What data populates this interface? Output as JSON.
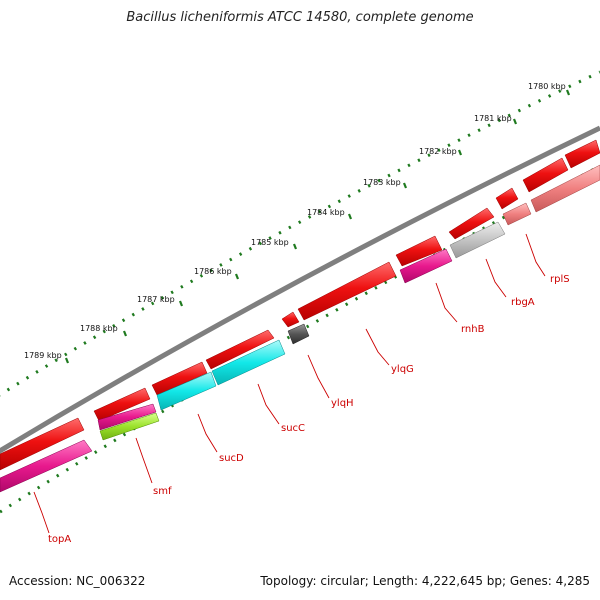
{
  "header": {
    "title": "Bacillus licheniformis ATCC 14580, complete genome"
  },
  "footer": {
    "accession": "Accession: NC_006322",
    "summary": "Topology: circular; Length: 4,222,645 bp; Genes: 4,285"
  },
  "kbp_labels": [
    "1780 kbp",
    "1781 kbp",
    "1782 kbp",
    "1783 kbp",
    "1784 kbp",
    "1785 kbp",
    "1786 kbp",
    "1787 kbp",
    "1788 kbp",
    "1789 kbp"
  ],
  "genes": [
    "rplS",
    "rbgA",
    "rnhB",
    "ylqG",
    "ylqH",
    "sucC",
    "sucD",
    "smf",
    "topA"
  ],
  "colors": {
    "backbone": "#7f7f7f",
    "cds": "#ee1111",
    "magenta": "#e8198d",
    "cyan": "#12e8e8",
    "lime": "#9be22b",
    "gray_feature": "#c4c4c4",
    "dark_feature": "#555555",
    "pink_feature": "#f08080",
    "ticks": "#1f7a1f",
    "label": "#cc0000"
  }
}
